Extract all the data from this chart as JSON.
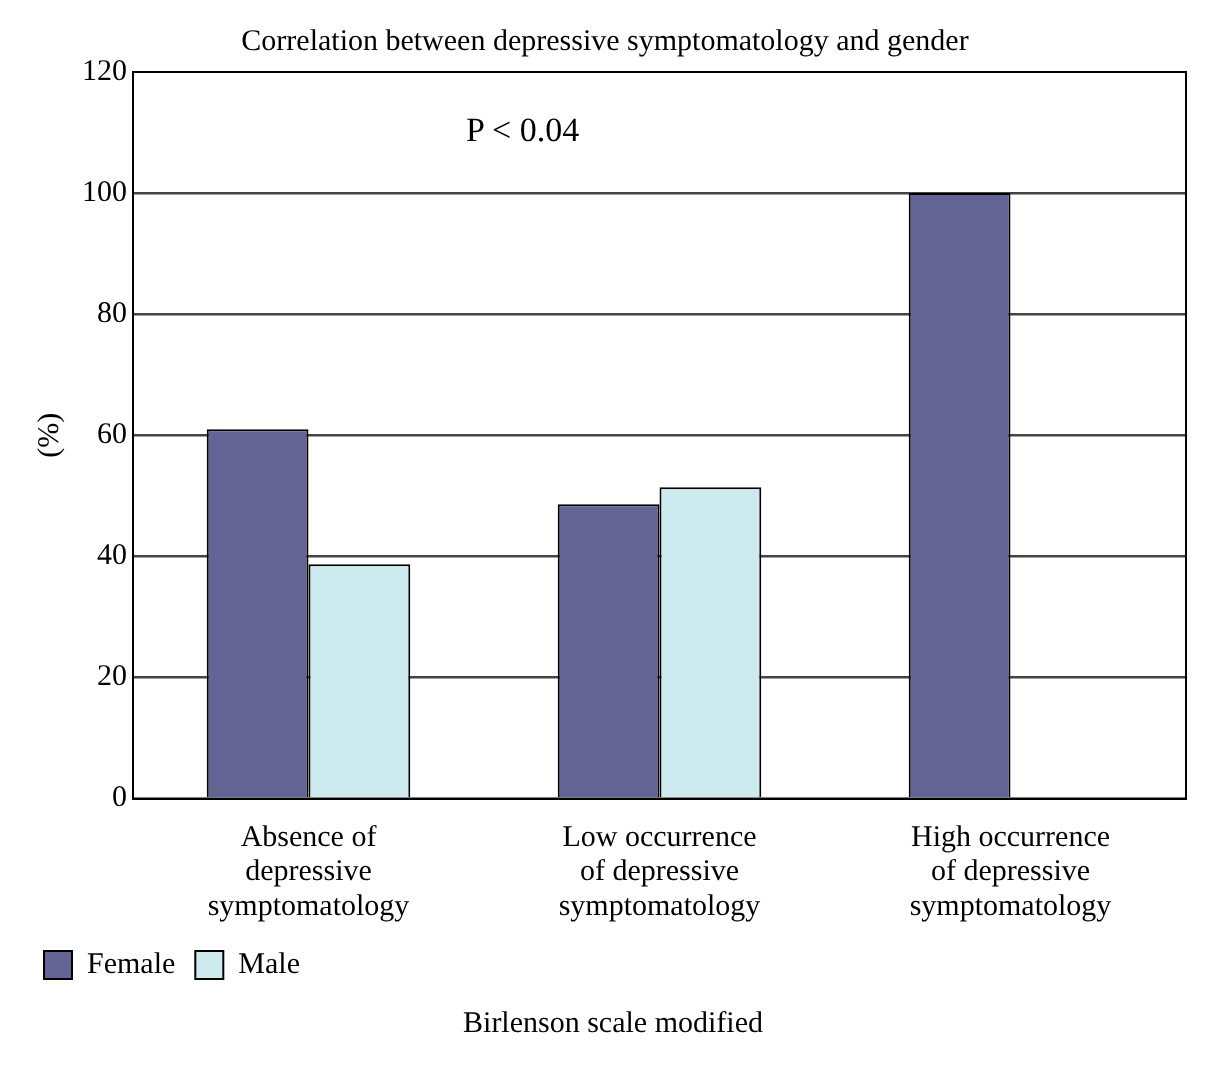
{
  "chart_data": {
    "type": "bar",
    "title": "Correlation between depressive symptomatology and gender",
    "xlabel": "Birlenson scale modified",
    "ylabel": "(%)",
    "categories": [
      "Absence of depressive symptomatology",
      "Low occurrence of depressive symptomatology",
      "High occurrence of depressive symptomatology"
    ],
    "series": [
      {
        "name": "Female",
        "color": "#636394",
        "values": [
          61,
          48.6,
          100
        ]
      },
      {
        "name": "Male",
        "color": "#cdeaee",
        "values": [
          38.7,
          51.4,
          0
        ]
      }
    ],
    "ylim": [
      0,
      120
    ],
    "yticks": [
      0,
      20,
      40,
      60,
      80,
      100,
      120
    ],
    "grid": "y",
    "legend": "bottom left",
    "annotations": [
      {
        "text": "P < 0.04"
      }
    ]
  }
}
